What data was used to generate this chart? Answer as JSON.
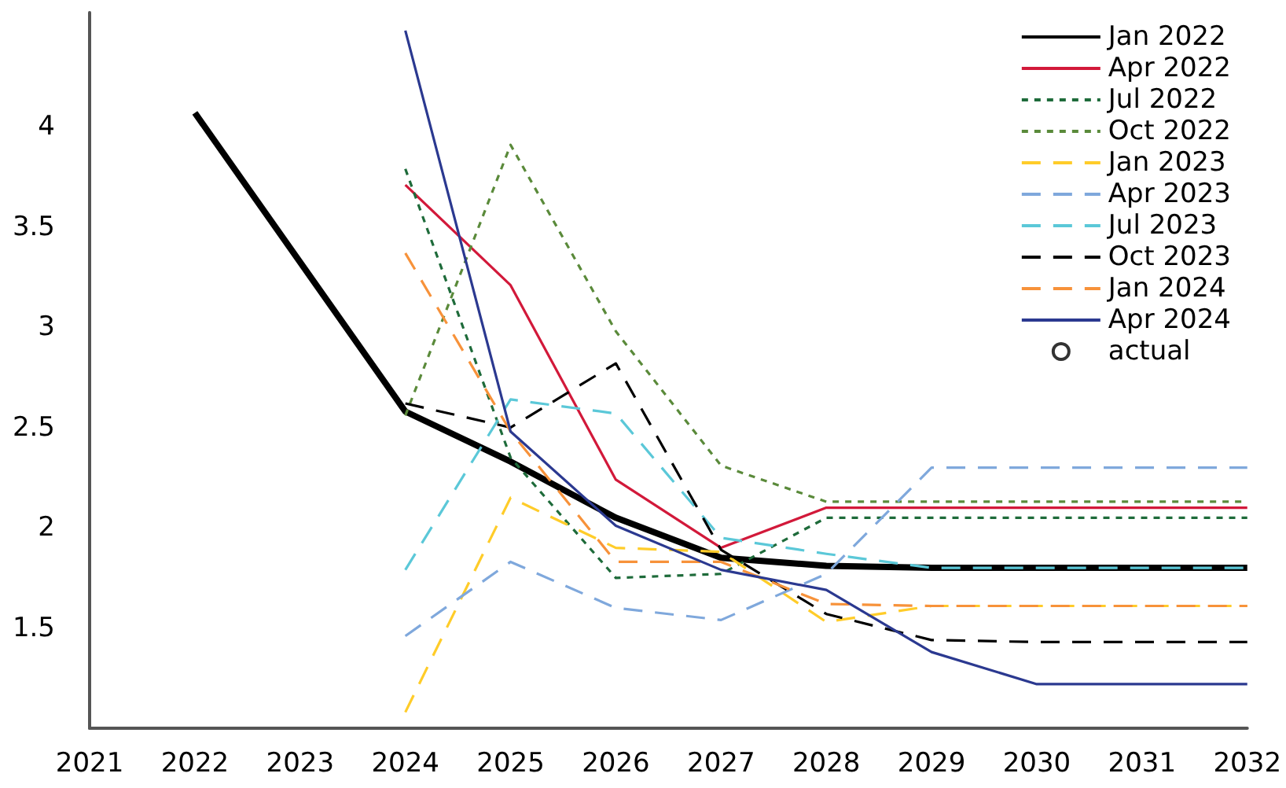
{
  "chart_data": {
    "type": "line",
    "x": [
      2024,
      2025,
      2026,
      2027,
      2028,
      2029,
      2030,
      2031,
      2032
    ],
    "series": [
      {
        "name": "Jan 2022",
        "color": "#000000",
        "line_style": "solid",
        "x": [
          2022,
          2024,
          2025,
          2026,
          2027,
          2028,
          2029,
          2030,
          2031,
          2032
        ],
        "values": [
          4.07,
          2.58,
          2.33,
          2.05,
          1.85,
          1.81,
          1.8,
          1.8,
          1.8,
          1.8
        ]
      },
      {
        "name": "Apr 2022",
        "color": "#d2193a",
        "line_style": "solid",
        "values": [
          3.71,
          3.21,
          2.24,
          1.9,
          2.1,
          2.1,
          2.1,
          2.1,
          2.1
        ]
      },
      {
        "name": "Jul 2022",
        "color": "#1e6b3a",
        "line_style": "dotted",
        "values": [
          3.79,
          2.35,
          1.75,
          1.77,
          2.05,
          2.05,
          2.05,
          2.05,
          2.05
        ]
      },
      {
        "name": "Oct 2022",
        "color": "#5a8a3a",
        "line_style": "dotted",
        "values": [
          2.56,
          3.91,
          2.98,
          2.31,
          2.13,
          2.13,
          2.13,
          2.13,
          2.13
        ]
      },
      {
        "name": "Jan 2023",
        "color": "#ffcc29",
        "line_style": "dashed",
        "values": [
          1.08,
          2.15,
          1.9,
          1.88,
          1.53,
          1.61,
          1.61,
          1.61,
          1.61
        ]
      },
      {
        "name": "Apr 2023",
        "color": "#7fa8dc",
        "line_style": "dashed",
        "values": [
          1.46,
          1.83,
          1.6,
          1.54,
          1.77,
          2.3,
          2.3,
          2.3,
          2.3
        ]
      },
      {
        "name": "Jul 2023",
        "color": "#5bc8d8",
        "line_style": "dashed",
        "values": [
          1.79,
          2.64,
          2.57,
          1.95,
          1.87,
          1.8,
          1.8,
          1.8,
          1.8
        ]
      },
      {
        "name": "Oct 2023",
        "color": "#000000",
        "line_style": "dashed",
        "values": [
          2.62,
          2.5,
          2.82,
          1.89,
          1.57,
          1.44,
          1.43,
          1.43,
          1.43
        ]
      },
      {
        "name": "Jan 2024",
        "color": "#f7923a",
        "line_style": "dashed",
        "values": [
          3.37,
          2.48,
          1.83,
          1.83,
          1.62,
          1.61,
          1.61,
          1.61,
          1.61
        ]
      },
      {
        "name": "Apr 2024",
        "color": "#2b3990",
        "line_style": "solid",
        "values": [
          4.48,
          2.48,
          2.01,
          1.79,
          1.69,
          1.38,
          1.22,
          1.22,
          1.22
        ]
      },
      {
        "name": "actual",
        "type": "scatter",
        "marker": "circle",
        "color": "#000000",
        "values": [
          null,
          null,
          null,
          null,
          null,
          null,
          null,
          null,
          null
        ]
      }
    ],
    "xlim": [
      2021,
      2032
    ],
    "xticks": [
      2021,
      2022,
      2023,
      2024,
      2025,
      2026,
      2027,
      2028,
      2029,
      2030,
      2031,
      2032
    ],
    "ylim": [
      1,
      4.57
    ],
    "yticks": [
      1.5,
      2,
      2.5,
      3,
      3.5,
      4
    ],
    "grid": false,
    "legend": "top right"
  }
}
